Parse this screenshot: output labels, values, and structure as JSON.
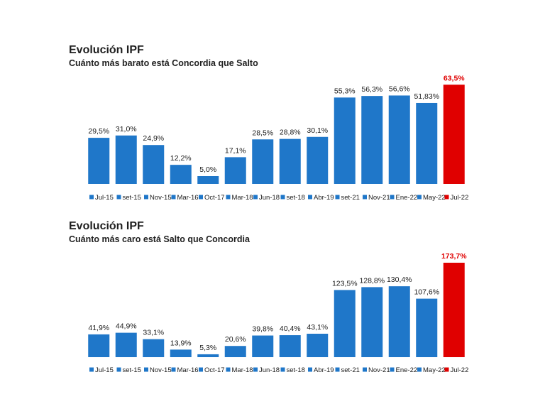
{
  "chart_data": [
    {
      "type": "bar",
      "title": "Evolución IPF",
      "subtitle": "Cuánto más barato está Concordia que Salto",
      "categories": [
        "Jul-15",
        "set-15",
        "Nov-15",
        "Mar-16",
        "Oct-17",
        "Mar-18",
        "Jun-18",
        "set-18",
        "Abr-19",
        "set-21",
        "Nov-21",
        "Ene-22",
        "May-22",
        "Jul-22"
      ],
      "values": [
        29.5,
        31.0,
        24.9,
        12.2,
        5.0,
        17.1,
        28.5,
        28.8,
        30.1,
        55.3,
        56.3,
        56.6,
        51.83,
        63.5
      ],
      "data_labels": [
        "29,5%",
        "31,0%",
        "24,9%",
        "12,2%",
        "5,0%",
        "17,1%",
        "28,5%",
        "28,8%",
        "30,1%",
        "55,3%",
        "56,3%",
        "56,6%",
        "51,83%",
        "63,5%"
      ],
      "ylim": [
        0,
        65
      ],
      "grid": false,
      "legend_placement": "bottom",
      "highlight_index": 13,
      "colors": {
        "bar": "#1f77c9",
        "highlight": "#e00000"
      }
    },
    {
      "type": "bar",
      "title": "Evolución IPF",
      "subtitle": "Cuánto más caro está Salto que Concordia",
      "categories": [
        "Jul-15",
        "set-15",
        "Nov-15",
        "Mar-16",
        "Oct-17",
        "Mar-18",
        "Jun-18",
        "set-18",
        "Abr-19",
        "set-21",
        "Nov-21",
        "Ene-22",
        "May-22",
        "Jul-22"
      ],
      "values": [
        41.9,
        44.9,
        33.1,
        13.9,
        5.3,
        20.6,
        39.8,
        40.4,
        43.1,
        123.5,
        128.8,
        130.4,
        107.6,
        173.7
      ],
      "data_labels": [
        "41,9%",
        "44,9%",
        "33,1%",
        "13,9%",
        "5,3%",
        "20,6%",
        "39,8%",
        "40,4%",
        "43,1%",
        "123,5%",
        "128,8%",
        "130,4%",
        "107,6%",
        "173,7%"
      ],
      "ylim": [
        0,
        175
      ],
      "grid": false,
      "legend_placement": "bottom",
      "highlight_index": 13,
      "colors": {
        "bar": "#1f77c9",
        "highlight": "#e00000"
      }
    }
  ]
}
